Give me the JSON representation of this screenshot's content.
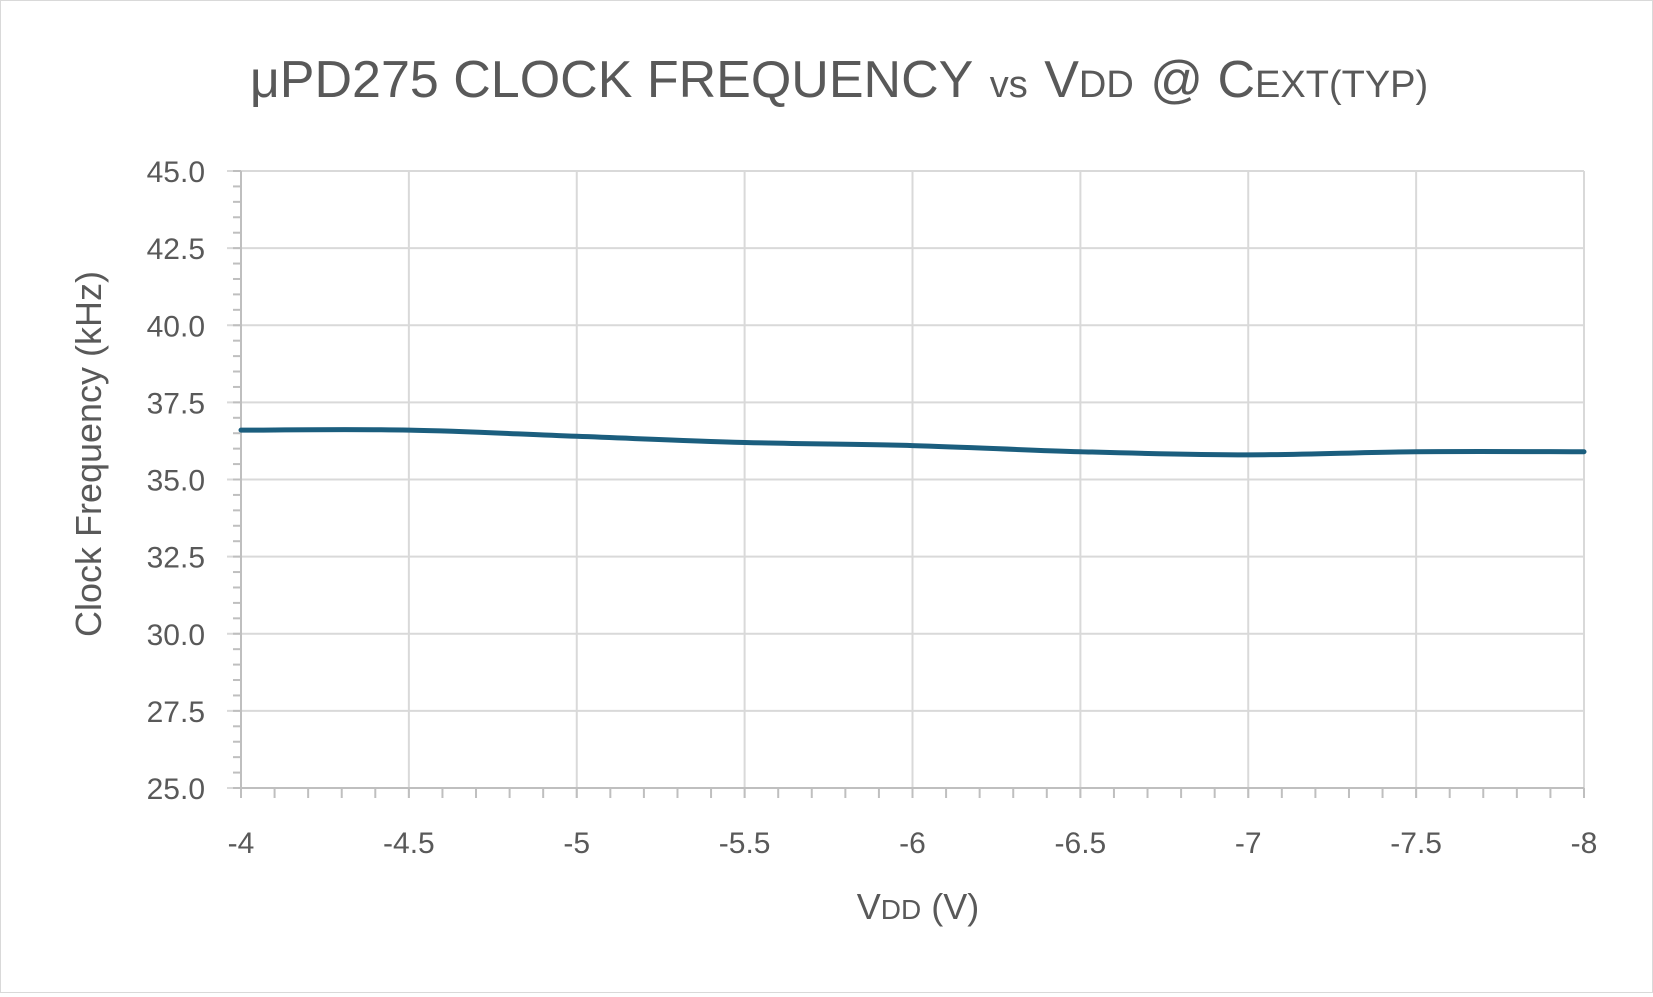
{
  "title": {
    "part1": "μPD275 CLOCK FREQUENCY",
    "part2": "vs",
    "part3": "V",
    "part4": "DD",
    "part5": "@ C",
    "part6": "EXT(TYP)"
  },
  "chart_data": {
    "type": "line",
    "title": "μPD275 CLOCK FREQUENCY vs VDD @ CEXT(TYP)",
    "xlabel": "VDD (V)",
    "ylabel": "Clock Frequency (kHz)",
    "xlim": [
      -4,
      -8
    ],
    "ylim": [
      25.0,
      45.0
    ],
    "x_ticks": [
      "-4",
      "-4.5",
      "-5",
      "-5.5",
      "-6",
      "-6.5",
      "-7",
      "-7.5",
      "-8"
    ],
    "y_ticks": [
      "25.0",
      "27.5",
      "30.0",
      "32.5",
      "35.0",
      "37.5",
      "40.0",
      "42.5",
      "45.0"
    ],
    "grid": true,
    "legend": "none",
    "series": [
      {
        "color": "#1b5e7e",
        "x": [
          -4,
          -4.5,
          -5,
          -5.5,
          -6,
          -6.5,
          -7,
          -7.5,
          -8
        ],
        "values": [
          36.6,
          36.6,
          36.4,
          36.2,
          36.1,
          35.9,
          35.8,
          35.9,
          35.9
        ]
      }
    ]
  }
}
